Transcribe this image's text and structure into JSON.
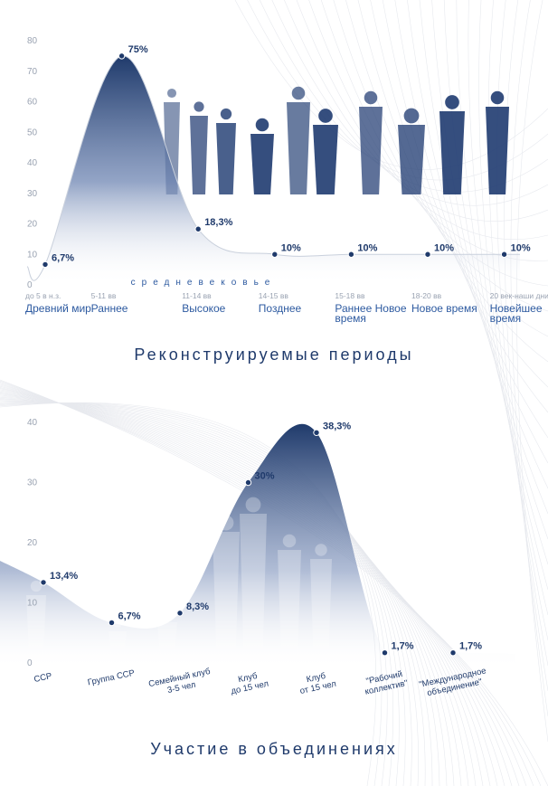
{
  "colors": {
    "accent": "#1f3a6b",
    "marker": "#1f3a6b",
    "tick": "#9aa3b2",
    "category_label": "#2d5aa0",
    "date_label": "#9aa3b2"
  },
  "chart_data": [
    {
      "type": "area",
      "title": "Реконструируемые периоды",
      "ylim": [
        0,
        80
      ],
      "yticks": [
        0,
        10,
        20,
        30,
        40,
        50,
        60,
        70,
        80
      ],
      "grid": false,
      "group_label": "средневековье",
      "categories": [
        {
          "date": "до 5 в н.з.",
          "name": "Древний мир"
        },
        {
          "date": "5-11 вв",
          "name": "Раннее"
        },
        {
          "date": "11-14 вв",
          "name": "Высокое"
        },
        {
          "date": "14-15 вв",
          "name": "Позднее"
        },
        {
          "date": "15-18 вв",
          "name": "Раннее Новое время"
        },
        {
          "date": "18-20 вв",
          "name": "Новое время"
        },
        {
          "date": "20 век-наши дни",
          "name": "Новейшее время"
        }
      ],
      "values": [
        6.7,
        75,
        18.3,
        10,
        10,
        10,
        10
      ],
      "value_labels": [
        "6,7%",
        "75%",
        "18,3%",
        "10%",
        "10%",
        "10%",
        "10%"
      ]
    },
    {
      "type": "area",
      "title": "Участие в объединениях",
      "ylim": [
        0,
        40
      ],
      "yticks": [
        0,
        10,
        20,
        30,
        40
      ],
      "grid": false,
      "categories": [
        {
          "name": "ССР"
        },
        {
          "name": "Группа ССР"
        },
        {
          "name": "Семейный клуб 3-5 чел"
        },
        {
          "name": "Клуб до 15 чел"
        },
        {
          "name": "Клуб от 15 чел"
        },
        {
          "name": "\"Рабочий коллектив\""
        },
        {
          "name": "\"Международное объединение\""
        }
      ],
      "values": [
        13.4,
        6.7,
        8.3,
        30,
        38.3,
        1.7,
        1.7
      ],
      "value_labels": [
        "13,4%",
        "6,7%",
        "8,3%",
        "30%",
        "38,3%",
        "1,7%",
        "1,7%"
      ]
    }
  ]
}
